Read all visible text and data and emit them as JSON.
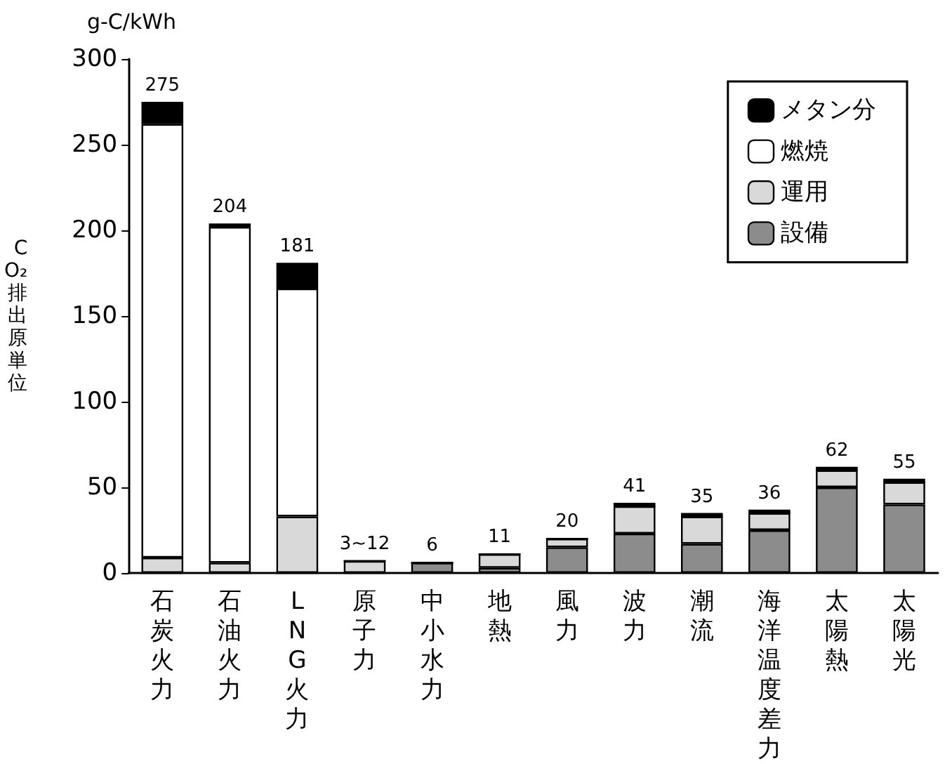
{
  "chart_data": {
    "type": "bar",
    "stacked": true,
    "ylabel": "CO₂排出原単位",
    "annotations": [
      "g-C/kWh"
    ],
    "categories": [
      "石炭火力",
      "石油火力",
      "LNG火力",
      "原子力",
      "中小水力",
      "地熱",
      "風力",
      "波力",
      "潮流",
      "海洋温度差力",
      "太陽熱",
      "太陽光"
    ],
    "series": [
      {
        "name": "設備",
        "color": "#8c8c8c",
        "values": [
          0,
          0,
          0,
          0,
          6,
          3,
          15,
          23,
          17,
          25,
          50,
          40
        ]
      },
      {
        "name": "運用",
        "color": "#d9d9d9",
        "values": [
          9,
          6,
          33,
          7,
          0,
          8,
          5,
          16,
          16,
          10,
          10,
          13
        ]
      },
      {
        "name": "燃焼",
        "color": "#ffffff",
        "values": [
          253,
          196,
          133,
          0,
          0,
          0,
          0,
          0,
          0,
          0,
          0,
          0
        ]
      },
      {
        "name": "メタン分",
        "color": "#000000",
        "values": [
          13,
          2,
          15,
          0,
          0,
          0,
          0,
          2,
          2,
          2,
          2,
          2
        ]
      }
    ],
    "totals": [
      "275",
      "204",
      "181",
      "3~12",
      "6",
      "11",
      "20",
      "41",
      "35",
      "36",
      "62",
      "55"
    ],
    "ylim": [
      0,
      300
    ],
    "yticks": [
      0,
      50,
      100,
      150,
      200,
      250,
      300
    ],
    "grid": false,
    "legend": "top right"
  }
}
